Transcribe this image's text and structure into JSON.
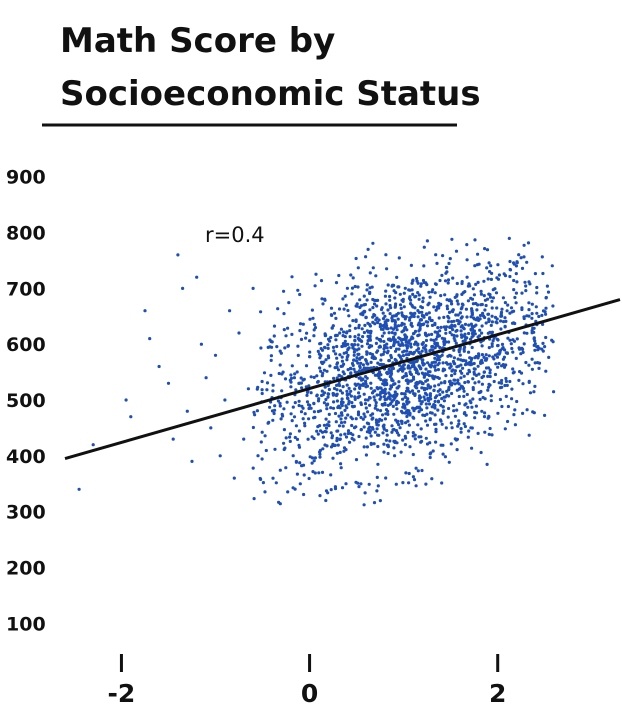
{
  "chart_data": {
    "type": "scatter",
    "title_lines": [
      "Math Score by",
      "Socioeconomic Status"
    ],
    "xlabel": "",
    "ylabel": "",
    "x_ticks": [
      {
        "value": -2,
        "label": "-2"
      },
      {
        "value": 0,
        "label": "0"
      },
      {
        "value": 2,
        "label": "2"
      }
    ],
    "y_ticks": [
      {
        "value": 900,
        "label": "900"
      },
      {
        "value": 800,
        "label": "800"
      },
      {
        "value": 700,
        "label": "700"
      },
      {
        "value": 600,
        "label": "600"
      },
      {
        "value": 500,
        "label": "500"
      },
      {
        "value": 400,
        "label": "400"
      },
      {
        "value": 300,
        "label": "300"
      },
      {
        "value": 200,
        "label": "200"
      },
      {
        "value": 100,
        "label": "100"
      }
    ],
    "xlim": [
      -2.6,
      3.3
    ],
    "ylim": [
      70,
      930
    ],
    "annotation": "r=0.4",
    "correlation": 0.4,
    "point_color": "#1f4fb4",
    "line_color": "#111111",
    "grid": false,
    "cloud": {
      "center_x": 1.0,
      "center_y": 560,
      "sd_x": 0.8,
      "sd_y": 95,
      "x_range": [
        -0.6,
        2.6
      ],
      "y_range": [
        310,
        790
      ]
    },
    "outlier_points": [
      {
        "x": -2.45,
        "y": 340
      },
      {
        "x": -2.3,
        "y": 420
      },
      {
        "x": -1.95,
        "y": 500
      },
      {
        "x": -1.9,
        "y": 470
      },
      {
        "x": -1.75,
        "y": 660
      },
      {
        "x": -1.7,
        "y": 610
      },
      {
        "x": -1.6,
        "y": 560
      },
      {
        "x": -1.5,
        "y": 530
      },
      {
        "x": -1.45,
        "y": 430
      },
      {
        "x": -1.4,
        "y": 760
      },
      {
        "x": -1.35,
        "y": 700
      },
      {
        "x": -1.3,
        "y": 480
      },
      {
        "x": -1.25,
        "y": 390
      },
      {
        "x": -1.2,
        "y": 720
      },
      {
        "x": -1.15,
        "y": 600
      },
      {
        "x": -1.1,
        "y": 540
      },
      {
        "x": -1.05,
        "y": 450
      },
      {
        "x": -1.0,
        "y": 580
      },
      {
        "x": -0.95,
        "y": 400
      },
      {
        "x": -0.9,
        "y": 500
      },
      {
        "x": -0.85,
        "y": 660
      },
      {
        "x": -0.8,
        "y": 360
      },
      {
        "x": -0.75,
        "y": 620
      },
      {
        "x": -0.7,
        "y": 430
      },
      {
        "x": -0.65,
        "y": 520
      },
      {
        "x": -0.6,
        "y": 700
      }
    ],
    "regression_line": {
      "x": [
        -2.6,
        3.3
      ],
      "y": [
        395,
        680
      ]
    }
  }
}
